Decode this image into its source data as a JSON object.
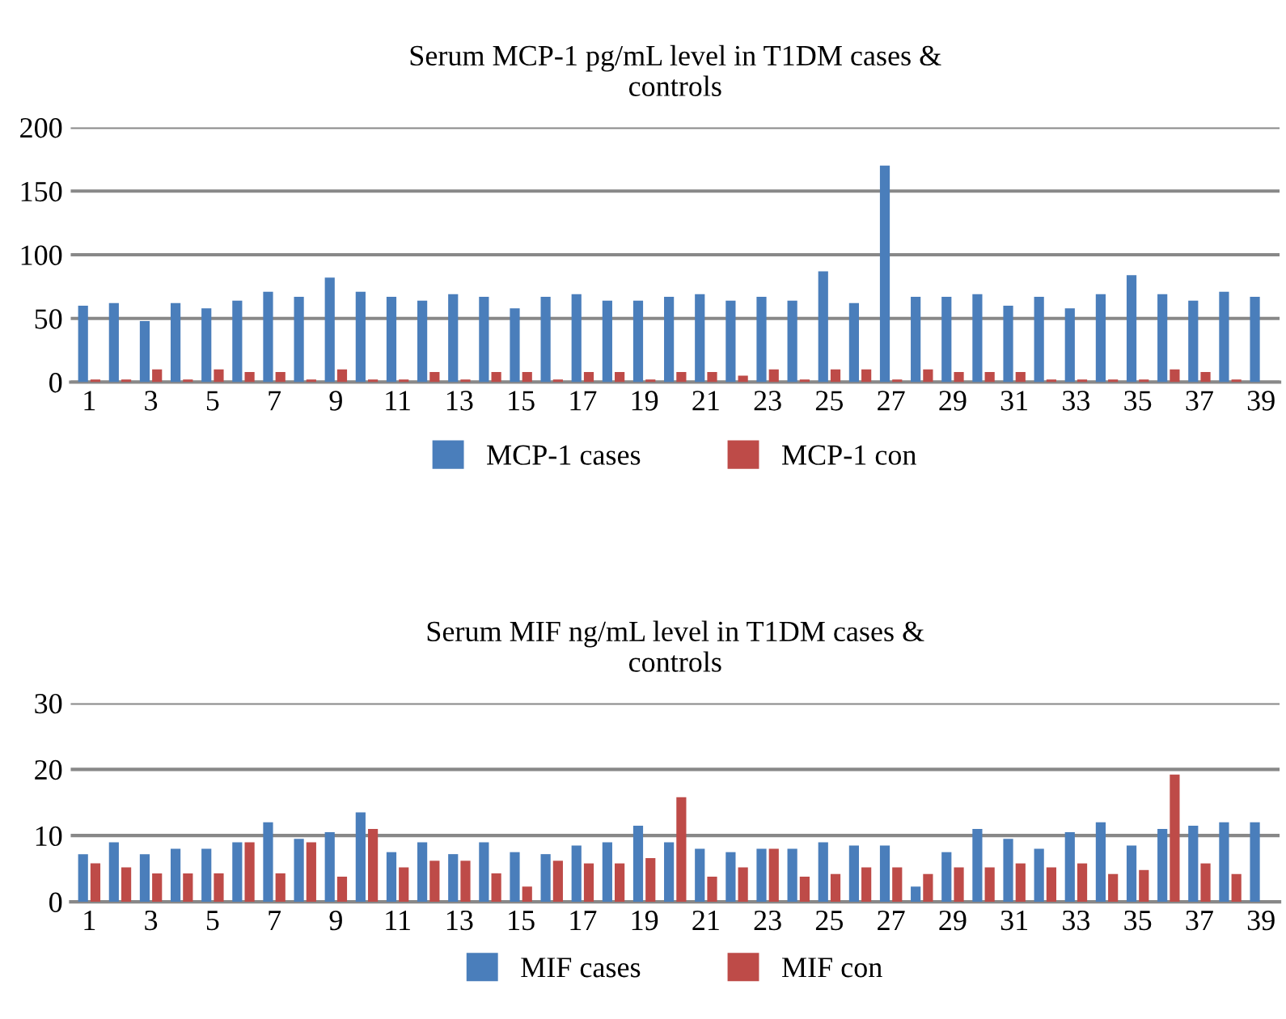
{
  "chart_data": [
    {
      "type": "bar",
      "title": "Serum MCP-1 pg/mL level in T1DM cases &\ncontrols",
      "categories": [
        "1",
        null,
        "3",
        null,
        "5",
        null,
        "7",
        null,
        "9",
        null,
        "11",
        null,
        "13",
        null,
        "15",
        null,
        "17",
        null,
        "19",
        null,
        "21",
        null,
        "23",
        null,
        "25",
        null,
        "27",
        null,
        "29",
        null,
        "31",
        null,
        "33",
        null,
        "35",
        null,
        "37",
        null,
        "39"
      ],
      "series": [
        {
          "name": "MCP-1 cases",
          "color": "#4a7ebb",
          "values": [
            60,
            62,
            48,
            62,
            58,
            64,
            71,
            67,
            82,
            71,
            67,
            64,
            69,
            67,
            58,
            67,
            69,
            64,
            64,
            67,
            69,
            64,
            67,
            64,
            87,
            62,
            170,
            67,
            67,
            69,
            60,
            67,
            58,
            69,
            84,
            69,
            64,
            71,
            67
          ]
        },
        {
          "name": "MCP-1 con",
          "color": "#be4b48",
          "values": [
            2,
            2,
            10,
            2,
            10,
            8,
            8,
            2,
            10,
            2,
            2,
            8,
            2,
            8,
            8,
            2,
            8,
            8,
            2,
            8,
            8,
            5,
            10,
            2,
            10,
            10,
            2,
            10,
            8,
            8,
            8,
            2,
            2,
            2,
            2,
            10,
            8,
            2,
            null
          ]
        }
      ],
      "ylim": [
        0,
        200
      ],
      "yticks": [
        0,
        50,
        100,
        150,
        200
      ],
      "grid": "y",
      "legend": "bottom"
    },
    {
      "type": "bar",
      "title": "Serum MIF ng/mL level in T1DM cases &\ncontrols",
      "categories": [
        "1",
        null,
        "3",
        null,
        "5",
        null,
        "7",
        null,
        "9",
        null,
        "11",
        null,
        "13",
        null,
        "15",
        null,
        "17",
        null,
        "19",
        null,
        "21",
        null,
        "23",
        null,
        "25",
        null,
        "27",
        null,
        "29",
        null,
        "31",
        null,
        "33",
        null,
        "35",
        null,
        "37",
        null,
        "39"
      ],
      "series": [
        {
          "name": "MIF cases",
          "color": "#4a7ebb",
          "values": [
            7.2,
            9,
            7.2,
            8,
            8,
            9,
            12,
            9.5,
            10.5,
            13.5,
            7.5,
            9,
            7.2,
            9,
            7.5,
            7.2,
            8.5,
            9,
            11.5,
            9,
            8,
            7.5,
            8,
            8,
            9,
            8.5,
            8.5,
            2.3,
            7.5,
            11,
            9.5,
            8,
            10.5,
            12,
            8.5,
            11,
            11.5,
            12,
            12
          ]
        },
        {
          "name": "MIF con",
          "color": "#be4b48",
          "values": [
            5.8,
            5.2,
            4.3,
            4.3,
            4.3,
            9,
            4.3,
            9,
            3.8,
            11,
            5.2,
            6.2,
            6.2,
            4.3,
            2.3,
            6.2,
            5.8,
            5.8,
            6.6,
            15.8,
            3.8,
            5.2,
            8,
            3.8,
            4.2,
            5.2,
            5.2,
            4.2,
            5.2,
            5.2,
            5.8,
            5.2,
            5.8,
            4.2,
            4.8,
            19.2,
            5.8,
            4.2,
            null
          ]
        }
      ],
      "ylim": [
        0,
        30
      ],
      "yticks": [
        0,
        10,
        20,
        30
      ],
      "grid": "y",
      "legend": "bottom"
    }
  ]
}
